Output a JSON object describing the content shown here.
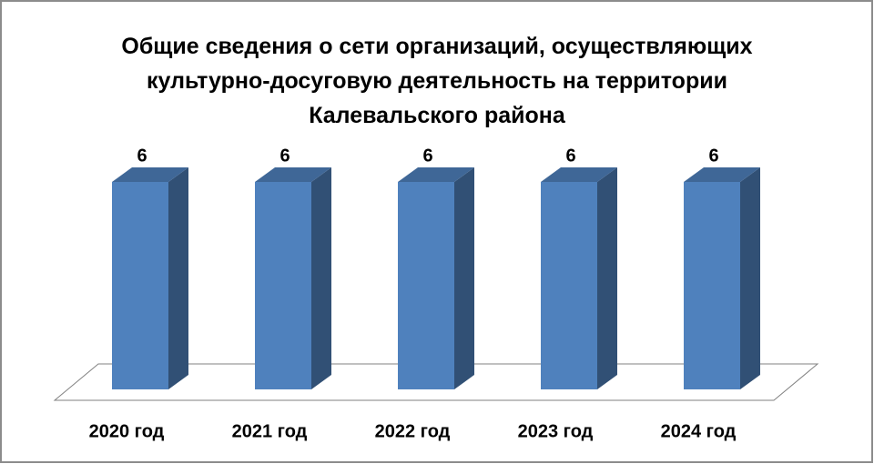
{
  "chart_data": {
    "type": "bar3d",
    "title": "Общие сведения о сети организаций, осуществляющих культурно-досуговую деятельность на территории Калевальского района",
    "categories": [
      "2020 год",
      "2021 год",
      "2022 год",
      "2023 год",
      "2024 год"
    ],
    "values": [
      6,
      6,
      6,
      6,
      6
    ],
    "color": "#4f81bd",
    "ylim": [
      0,
      7
    ]
  }
}
